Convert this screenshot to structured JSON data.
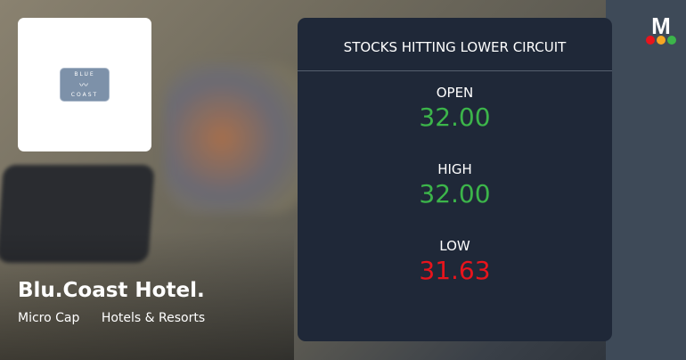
{
  "company": {
    "name": "Blu.Coast Hotel.",
    "tags": [
      "Micro Cap",
      "Hotels & Resorts"
    ],
    "logo_text": [
      "BLUE",
      "COAST"
    ]
  },
  "panel": {
    "title": "STOCKS HITTING LOWER CIRCUIT",
    "open": {
      "label": "OPEN",
      "value": "32.00",
      "color": "#3cb54a"
    },
    "high": {
      "label": "HIGH",
      "value": "32.00",
      "color": "#3cb54a"
    },
    "low": {
      "label": "LOW",
      "value": "31.63",
      "color": "#e8141c"
    }
  },
  "brand": {
    "logo_letter": "M",
    "dot_colors": [
      "#e8141c",
      "#f5a623",
      "#3cb54a"
    ]
  }
}
